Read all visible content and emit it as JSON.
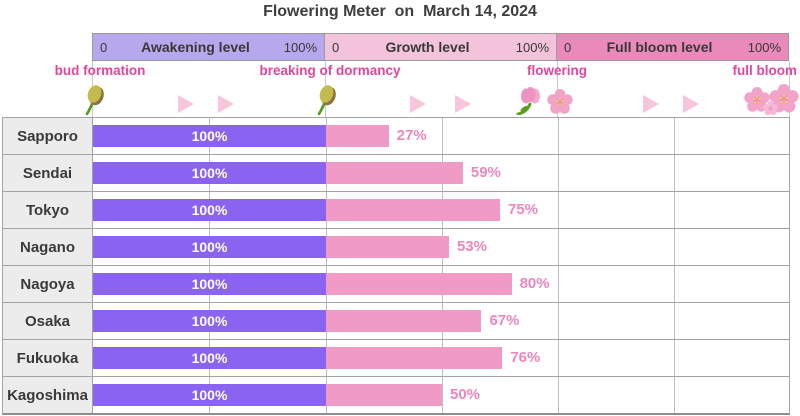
{
  "title": "Flowering Meter  on  March 14, 2024",
  "meters": [
    {
      "min": "0",
      "label": "Awakening level",
      "max": "100%",
      "color": "#b6a8ec"
    },
    {
      "min": "0",
      "label": "Growth level",
      "max": "100%",
      "color": "#f3c3db"
    },
    {
      "min": "0",
      "label": "Full bloom level",
      "max": "100%",
      "color": "#e98abb"
    }
  ],
  "stages": [
    {
      "label": "bud formation",
      "icon": "flower-bud-icon"
    },
    {
      "label": "breaking of dormancy",
      "icon": "flower-bud-icon"
    },
    {
      "label": "flowering",
      "icon": "tulip-and-blossom-icon"
    },
    {
      "label": "full bloom",
      "icon": "double-blossom-icon"
    }
  ],
  "chart_data": {
    "type": "bar",
    "orientation": "horizontal",
    "title": "Flowering Meter  on  March 14, 2024",
    "categories": [
      "Sapporo",
      "Sendai",
      "Tokyo",
      "Nagano",
      "Nagoya",
      "Osaka",
      "Fukuoka",
      "Kagoshima"
    ],
    "series": [
      {
        "name": "Awakening level",
        "unit": "%",
        "color": "#8a63f0",
        "values": [
          100,
          100,
          100,
          100,
          100,
          100,
          100,
          100
        ]
      },
      {
        "name": "Growth level",
        "unit": "%",
        "color": "#f09bc5",
        "values": [
          27,
          59,
          75,
          53,
          80,
          67,
          76,
          50
        ]
      },
      {
        "name": "Full bloom level",
        "unit": "%",
        "color": "#e98abb",
        "values": [
          0,
          0,
          0,
          0,
          0,
          0,
          0,
          0
        ]
      }
    ],
    "xlim": [
      0,
      100
    ],
    "grid": true,
    "value_labels": true
  },
  "colors": {
    "awakening_bar": "#8a63f0",
    "growth_bar": "#f09bc5",
    "stage_text": "#e2469a",
    "value_text": "#ee86bc",
    "arrow": "#f7c6dc",
    "grid": "#a3a3a3"
  }
}
